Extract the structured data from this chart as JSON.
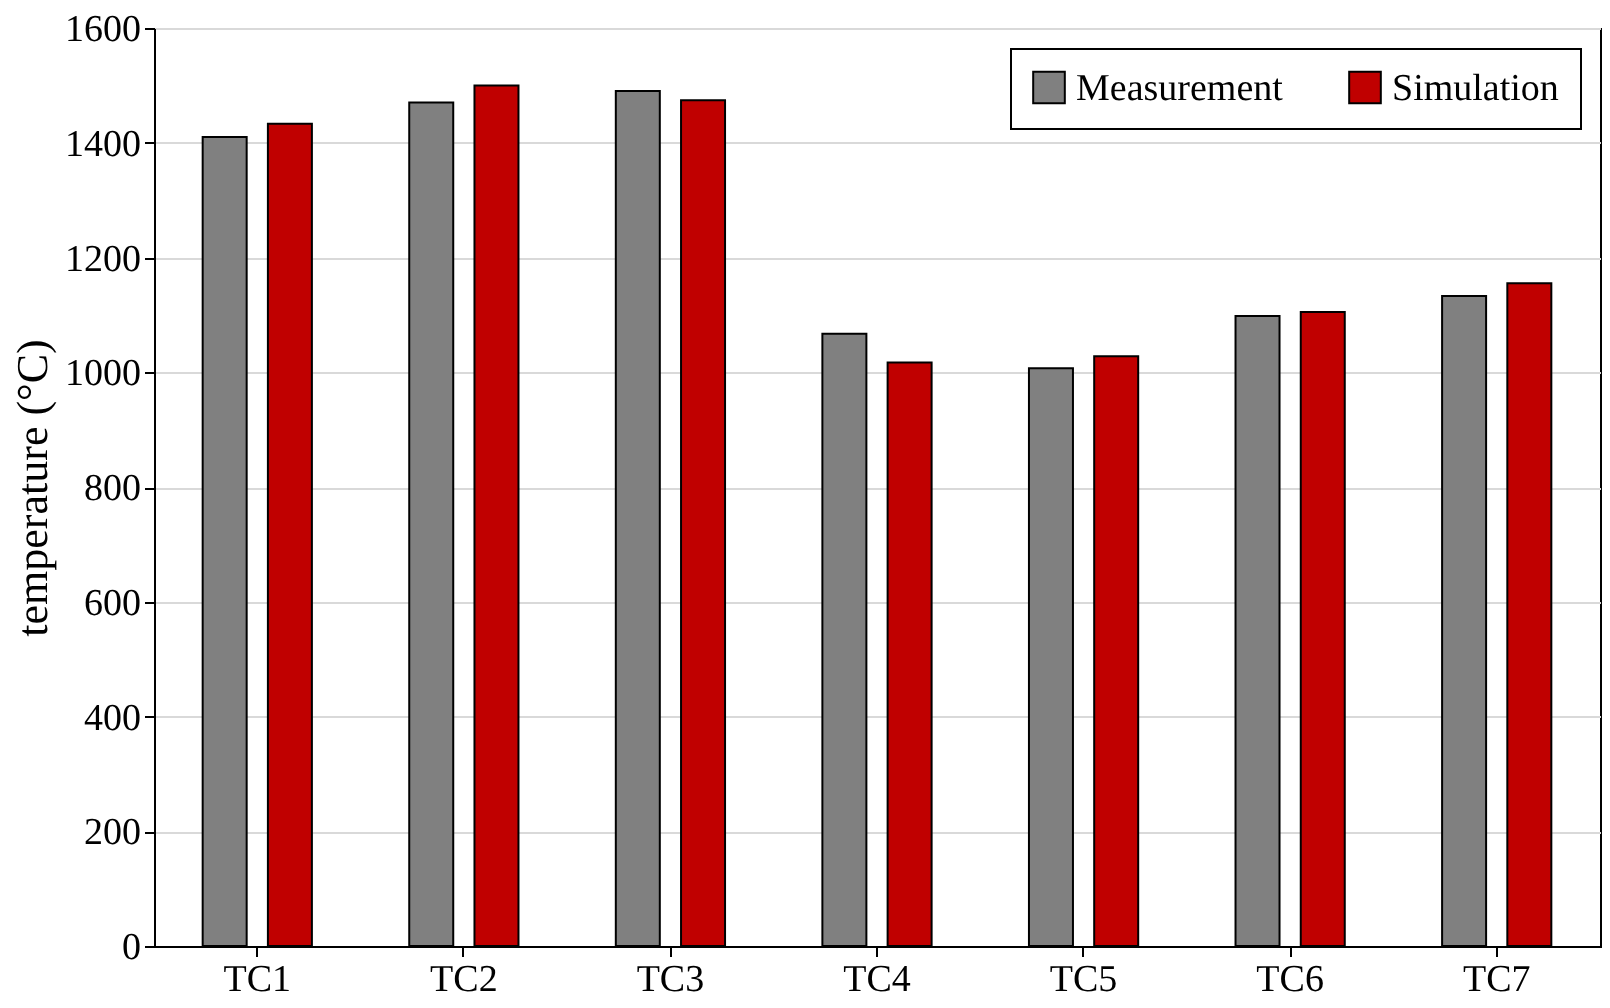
{
  "chart_data": {
    "type": "bar",
    "ylabel": "temperature (°C)",
    "categories": [
      "TC1",
      "TC2",
      "TC3",
      "TC4",
      "TC5",
      "TC6",
      "TC7"
    ],
    "series": [
      {
        "name": "Measurement",
        "color": "#808080",
        "values": [
          1410,
          1470,
          1490,
          1067,
          1007,
          1098,
          1133
        ]
      },
      {
        "name": "Simulation",
        "color": "#c00000",
        "values": [
          1433,
          1500,
          1474,
          1017,
          1028,
          1105,
          1155
        ]
      }
    ],
    "ylim": [
      0,
      1600
    ],
    "yticks": [
      0,
      200,
      400,
      600,
      800,
      1000,
      1200,
      1400,
      1600
    ],
    "grid": "y",
    "legend": "top right"
  }
}
